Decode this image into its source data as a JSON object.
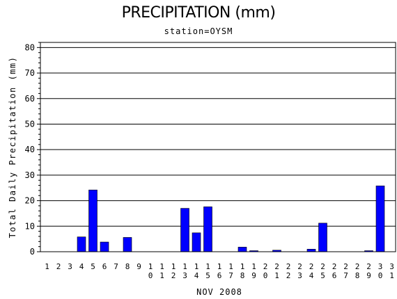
{
  "chart_data": {
    "type": "bar",
    "title": "PRECIPITATION (mm)",
    "subtitle": "station=OYSM",
    "xlabel": "NOV 2008",
    "ylabel": "Total Daily Precipitation (mm)",
    "ylim": [
      0,
      82
    ],
    "yticks": [
      0,
      10,
      20,
      30,
      40,
      50,
      60,
      70,
      80
    ],
    "grid": true,
    "bar_color": "#0000ff",
    "categories": [
      "1",
      "2",
      "3",
      "4",
      "5",
      "6",
      "7",
      "8",
      "9",
      "10",
      "11",
      "12",
      "13",
      "14",
      "15",
      "16",
      "17",
      "18",
      "19",
      "20",
      "21",
      "22",
      "23",
      "24",
      "25",
      "26",
      "27",
      "28",
      "29",
      "30",
      "31"
    ],
    "values": [
      0,
      0,
      0,
      5.8,
      24.2,
      3.8,
      0,
      5.6,
      0,
      0,
      0,
      0,
      17.0,
      7.4,
      17.6,
      0,
      0,
      1.8,
      0.4,
      0,
      0.6,
      0,
      0,
      1.0,
      11.2,
      0,
      0,
      0,
      0.4,
      25.8,
      0
    ]
  }
}
